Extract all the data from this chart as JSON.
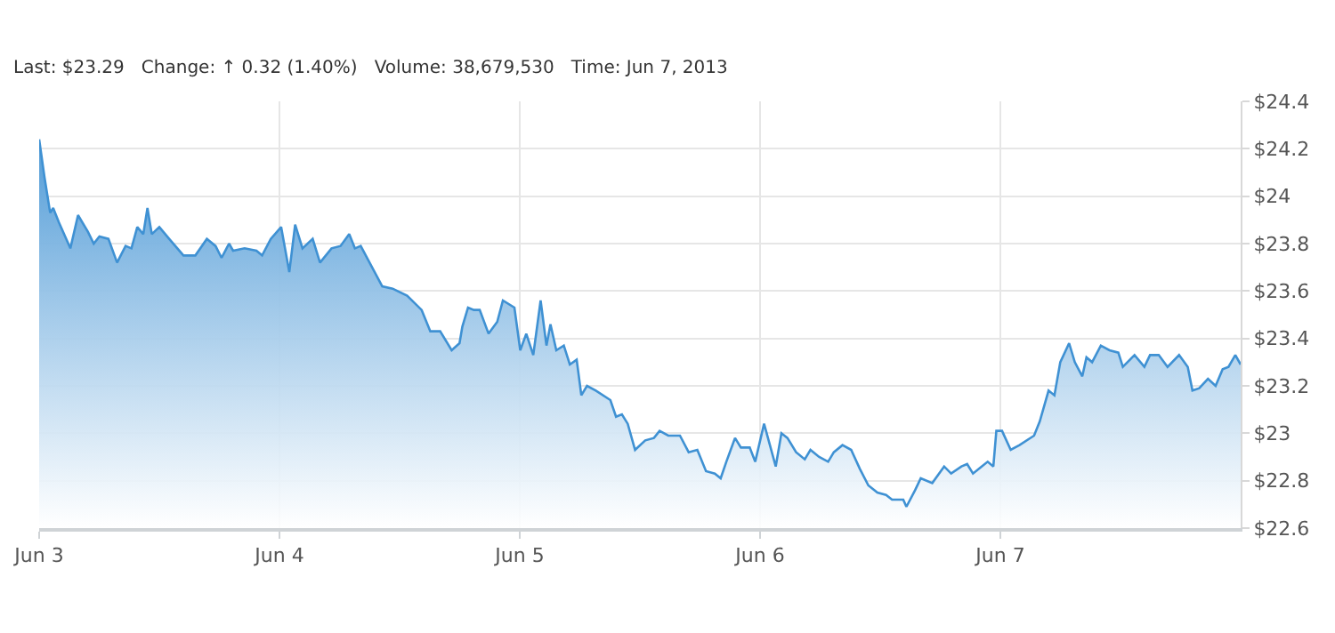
{
  "chart_data": {
    "type": "area",
    "title": "Last: $23.29   Change: ↑ 0.32 (1.40%)   Volume: 38,679,530   Time: Jun 7, 2013",
    "x": [
      "2013-06-03T00:00",
      "2013-06-03T00:32",
      "2013-06-03T01:06",
      "2013-06-03T01:24",
      "2013-06-03T01:58",
      "2013-06-03T03:07",
      "2013-06-03T03:53",
      "2013-06-03T04:52",
      "2013-06-03T05:27",
      "2013-06-03T06:01",
      "2013-06-03T06:55",
      "2013-06-03T07:47",
      "2013-06-03T08:38",
      "2013-06-03T09:13",
      "2013-06-03T09:48",
      "2013-06-03T10:24",
      "2013-06-03T10:49",
      "2013-06-03T11:15",
      "2013-06-03T12:00",
      "2013-06-03T12:59",
      "2013-06-03T14:25",
      "2013-06-03T15:36",
      "2013-06-03T16:45",
      "2013-06-03T17:37",
      "2013-06-03T18:13",
      "2013-06-03T18:58",
      "2013-06-03T19:22",
      "2013-06-03T20:31",
      "2013-06-03T21:42",
      "2013-06-03T22:16",
      "2013-06-03T23:08",
      "2013-06-04T00:10",
      "2013-06-04T00:59",
      "2013-06-04T01:34",
      "2013-06-04T02:18",
      "2013-06-04T03:19",
      "2013-06-04T04:03",
      "2013-06-04T05:12",
      "2013-06-04T06:06",
      "2013-06-04T06:58",
      "2013-06-04T07:32",
      "2013-06-04T08:07",
      "2013-06-04T09:00",
      "2013-06-04T10:16",
      "2013-06-04T11:18",
      "2013-06-04T12:45",
      "2013-06-04T14:12",
      "2013-06-04T15:04",
      "2013-06-04T16:03",
      "2013-06-04T17:12",
      "2013-06-04T17:59",
      "2013-06-04T18:16",
      "2013-06-04T18:50",
      "2013-06-04T19:25",
      "2013-06-04T20:00",
      "2013-06-04T20:53",
      "2013-06-04T21:45",
      "2013-06-04T22:19",
      "2013-06-04T23:28",
      "2013-06-05T00:03",
      "2013-06-05T00:39",
      "2013-06-05T01:21",
      "2013-06-05T02:05",
      "2013-06-05T02:40",
      "2013-06-05T03:04",
      "2013-06-05T03:39",
      "2013-06-05T04:24",
      "2013-06-05T05:00",
      "2013-06-05T05:41",
      "2013-06-05T06:09",
      "2013-06-05T06:43",
      "2013-06-05T07:36",
      "2013-06-05T09:03",
      "2013-06-05T09:37",
      "2013-06-05T10:12",
      "2013-06-05T10:47",
      "2013-06-05T11:31",
      "2013-06-05T12:32",
      "2013-06-05T13:24",
      "2013-06-05T13:58",
      "2013-06-05T14:50",
      "2013-06-05T16:00",
      "2013-06-05T16:52",
      "2013-06-05T17:44",
      "2013-06-05T18:36",
      "2013-06-05T19:29",
      "2013-06-05T20:04",
      "2013-06-05T20:38",
      "2013-06-05T21:30",
      "2013-06-05T22:05",
      "2013-06-05T22:58",
      "2013-06-05T23:31",
      "2013-06-06T00:24",
      "2013-06-06T00:59",
      "2013-06-06T01:34",
      "2013-06-06T02:08",
      "2013-06-06T02:44",
      "2013-06-06T03:36",
      "2013-06-06T04:28",
      "2013-06-06T05:02",
      "2013-06-06T05:54",
      "2013-06-06T06:48",
      "2013-06-06T07:22",
      "2013-06-06T08:14",
      "2013-06-06T09:06",
      "2013-06-06T09:58",
      "2013-06-06T10:49",
      "2013-06-06T11:43",
      "2013-06-06T12:35",
      "2013-06-06T13:11",
      "2013-06-06T14:18",
      "2013-06-06T14:37",
      "2013-06-06T15:29",
      "2013-06-06T16:03",
      "2013-06-06T17:12",
      "2013-06-06T18:23",
      "2013-06-06T19:05",
      "2013-06-06T20:07",
      "2013-06-06T20:41",
      "2013-06-06T21:16",
      "2013-06-06T22:08",
      "2013-06-06T22:44",
      "2013-06-06T23:18",
      "2013-06-06T23:36",
      "2013-06-07T00:10",
      "2013-06-07T01:02",
      "2013-06-07T01:55",
      "2013-06-07T03:22",
      "2013-06-07T03:56",
      "2013-06-07T04:49",
      "2013-06-07T05:24",
      "2013-06-07T05:59",
      "2013-06-07T06:52",
      "2013-06-07T07:26",
      "2013-06-07T08:11",
      "2013-06-07T08:36",
      "2013-06-07T09:10",
      "2013-06-07T10:02",
      "2013-06-07T10:54",
      "2013-06-07T11:47",
      "2013-06-07T12:14",
      "2013-06-07T13:24",
      "2013-06-07T14:23",
      "2013-06-07T14:57",
      "2013-06-07T15:49",
      "2013-06-07T16:42",
      "2013-06-07T17:51",
      "2013-06-07T18:43",
      "2013-06-07T19:11",
      "2013-06-07T19:52",
      "2013-06-07T20:44",
      "2013-06-07T21:30",
      "2013-06-07T22:12",
      "2013-06-07T22:47",
      "2013-06-07T23:28",
      "2013-06-08T00:00"
    ],
    "series": [
      {
        "color": "#3f91d3",
        "values": [
          24.24,
          24.08,
          23.93,
          23.95,
          23.89,
          23.78,
          23.92,
          23.85,
          23.8,
          23.83,
          23.82,
          23.72,
          23.79,
          23.78,
          23.87,
          23.84,
          23.95,
          23.84,
          23.87,
          23.82,
          23.75,
          23.75,
          23.82,
          23.79,
          23.74,
          23.8,
          23.77,
          23.78,
          23.77,
          23.75,
          23.82,
          23.87,
          23.68,
          23.88,
          23.78,
          23.82,
          23.72,
          23.78,
          23.79,
          23.84,
          23.78,
          23.79,
          23.72,
          23.62,
          23.61,
          23.58,
          23.52,
          23.43,
          23.43,
          23.35,
          23.38,
          23.45,
          23.53,
          23.52,
          23.52,
          23.42,
          23.47,
          23.56,
          23.53,
          23.35,
          23.42,
          23.33,
          23.56,
          23.37,
          23.46,
          23.35,
          23.37,
          23.29,
          23.31,
          23.16,
          23.2,
          23.18,
          23.14,
          23.07,
          23.08,
          23.04,
          22.93,
          22.97,
          22.98,
          23.01,
          22.99,
          22.99,
          22.92,
          22.93,
          22.84,
          22.83,
          22.81,
          22.88,
          22.98,
          22.94,
          22.94,
          22.88,
          23.04,
          22.95,
          22.86,
          23.0,
          22.98,
          22.92,
          22.89,
          22.93,
          22.9,
          22.88,
          22.92,
          22.95,
          22.93,
          22.85,
          22.78,
          22.75,
          22.74,
          22.72,
          22.72,
          22.69,
          22.76,
          22.81,
          22.79,
          22.86,
          22.83,
          22.86,
          22.87,
          22.83,
          22.86,
          22.88,
          22.86,
          23.01,
          23.01,
          22.93,
          22.95,
          22.99,
          23.05,
          23.18,
          23.16,
          23.3,
          23.38,
          23.3,
          23.24,
          23.32,
          23.3,
          23.37,
          23.35,
          23.34,
          23.28,
          23.33,
          23.28,
          23.33,
          23.33,
          23.28,
          23.33,
          23.28,
          23.18,
          23.19,
          23.23,
          23.2,
          23.27,
          23.28,
          23.33,
          23.29
        ]
      }
    ],
    "xlim": [
      "2013-06-03",
      "2013-06-08"
    ],
    "xticks": [
      {
        "value": "2013-06-03",
        "label": "Jun 3"
      },
      {
        "value": "2013-06-04",
        "label": "Jun 4"
      },
      {
        "value": "2013-06-05",
        "label": "Jun 5"
      },
      {
        "value": "2013-06-06",
        "label": "Jun 6"
      },
      {
        "value": "2013-06-07",
        "label": "Jun 7"
      }
    ],
    "ylim": [
      22.6,
      24.4
    ],
    "yticks": [
      {
        "value": 22.6,
        "label": "$22.6"
      },
      {
        "value": 22.8,
        "label": "$22.8"
      },
      {
        "value": 23,
        "label": "$23"
      },
      {
        "value": 23.2,
        "label": "$23.2"
      },
      {
        "value": 23.4,
        "label": "$23.4"
      },
      {
        "value": 23.6,
        "label": "$23.6"
      },
      {
        "value": 23.8,
        "label": "$23.8"
      },
      {
        "value": 24,
        "label": "$24"
      },
      {
        "value": 24.2,
        "label": "$24.2"
      },
      {
        "value": 24.4,
        "label": "$24.4"
      }
    ],
    "grid": true
  }
}
